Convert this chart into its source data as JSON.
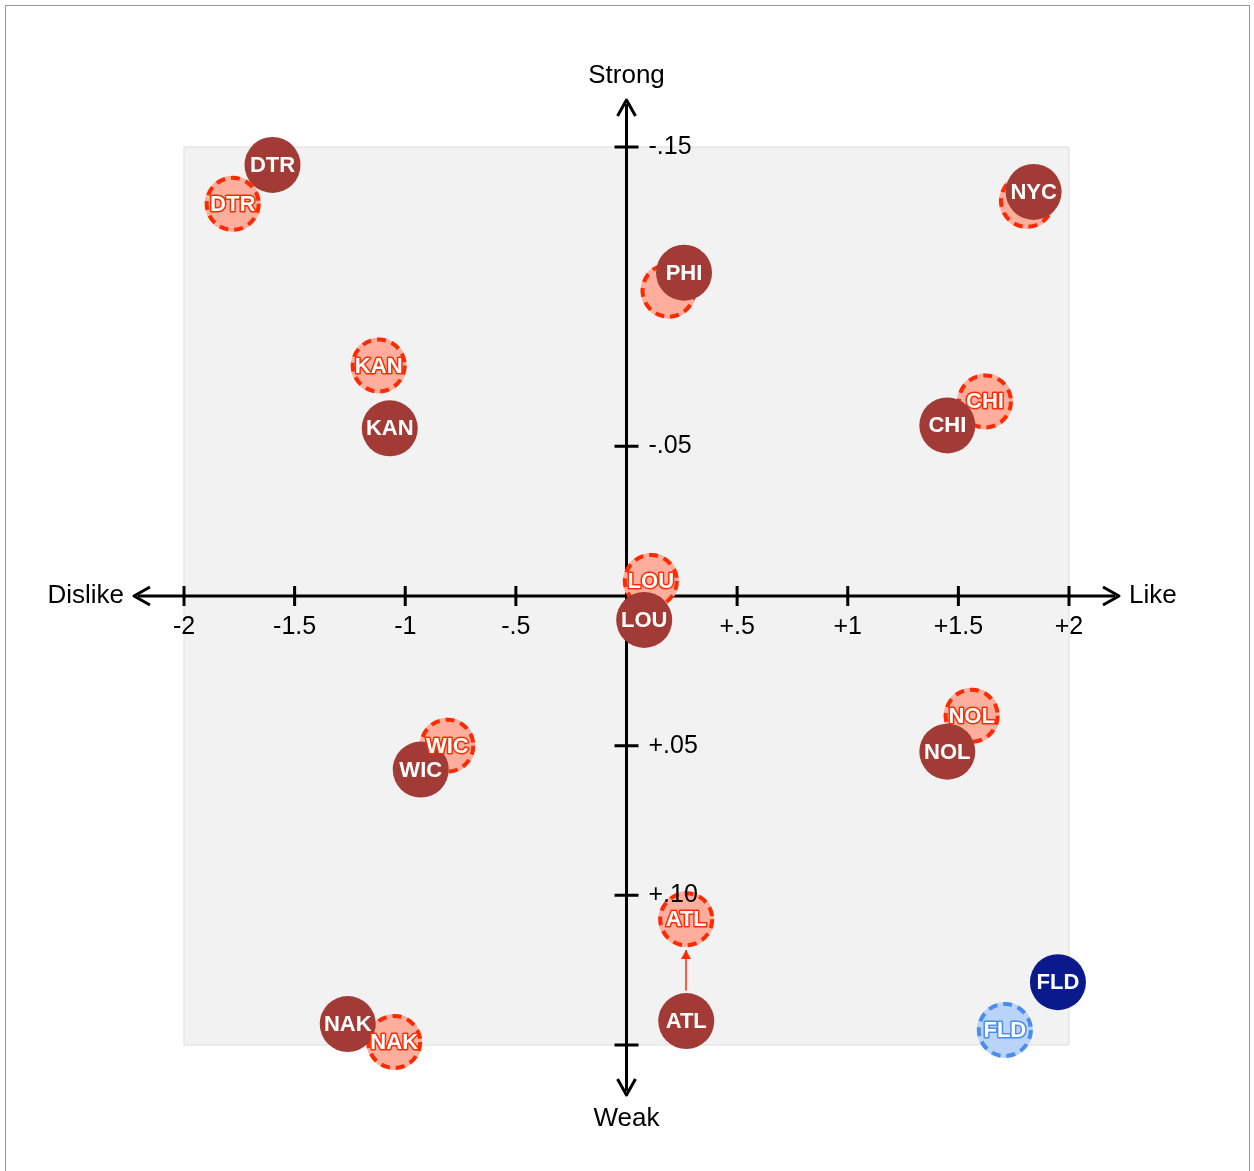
{
  "chart_data": {
    "type": "scatter",
    "annotations": [
      "Dislike",
      "Like",
      "Strong",
      "Weak"
    ],
    "xlim": [
      -2,
      2
    ],
    "ylim": [
      0.15,
      -0.15
    ],
    "xticks": [
      {
        "value": -2,
        "label": "-2"
      },
      {
        "value": -1.5,
        "label": "-1.5"
      },
      {
        "value": -1,
        "label": "-1"
      },
      {
        "value": -0.5,
        "label": "-.5"
      },
      {
        "value": 0.5,
        "label": "+.5"
      },
      {
        "value": 1,
        "label": "+1"
      },
      {
        "value": 1.5,
        "label": "+1.5"
      },
      {
        "value": 2,
        "label": "+2"
      }
    ],
    "yticks": [
      {
        "value": -0.15,
        "label": "-.15"
      },
      {
        "value": -0.05,
        "label": "-.05"
      },
      {
        "value": 0.05,
        "label": "+.05"
      },
      {
        "value": 0.1,
        "label": "+.10"
      },
      {
        "value": 0.15,
        "label": null
      }
    ],
    "grid": false,
    "legend": false,
    "marker": "circle",
    "series": [
      {
        "x": [
          -1.6,
          1.84,
          0.26,
          -1.07,
          1.45,
          0.08,
          -0.93,
          1.45,
          0.27,
          -1.26,
          1.95
        ],
        "values": [
          -0.144,
          -0.135,
          -0.108,
          -0.056,
          -0.057,
          0.008,
          0.058,
          0.052,
          0.142,
          0.143,
          0.129
        ],
        "value_labels": [
          "DTR",
          "NYC",
          "PHI",
          "KAN",
          "CHI",
          "LOU",
          "WIC",
          "NOL",
          "ATL",
          "NAK",
          "FLD"
        ],
        "colors": [
          "#a23b36",
          "#a23b36",
          "#a23b36",
          "#a23b36",
          "#a23b36",
          "#a23b36",
          "#a23b36",
          "#a23b36",
          "#a23b36",
          "#a23b36",
          "#0a1a8c"
        ],
        "line_style": "solid"
      },
      {
        "x": [
          -1.78,
          1.81,
          0.19,
          -1.12,
          1.62,
          0.11,
          -0.81,
          1.56,
          0.27,
          -1.05,
          1.71
        ],
        "values": [
          -0.131,
          -0.132,
          -0.102,
          -0.077,
          -0.065,
          -0.005,
          0.05,
          0.04,
          0.108,
          0.149,
          0.145
        ],
        "value_labels": [
          "DTR",
          null,
          null,
          "KAN",
          "CHI",
          "LOU",
          "WIC",
          "NOL",
          "ATL",
          "NAK",
          "FLD"
        ],
        "colors": [
          "#ff2a00",
          "#ff2a00",
          "#ff2a00",
          "#ff2a00",
          "#ff2a00",
          "#ff2a00",
          "#ff2a00",
          "#ff2a00",
          "#ff2a00",
          "#ff2a00",
          "#4a8cf0"
        ],
        "line_style": "dashed"
      }
    ]
  }
}
